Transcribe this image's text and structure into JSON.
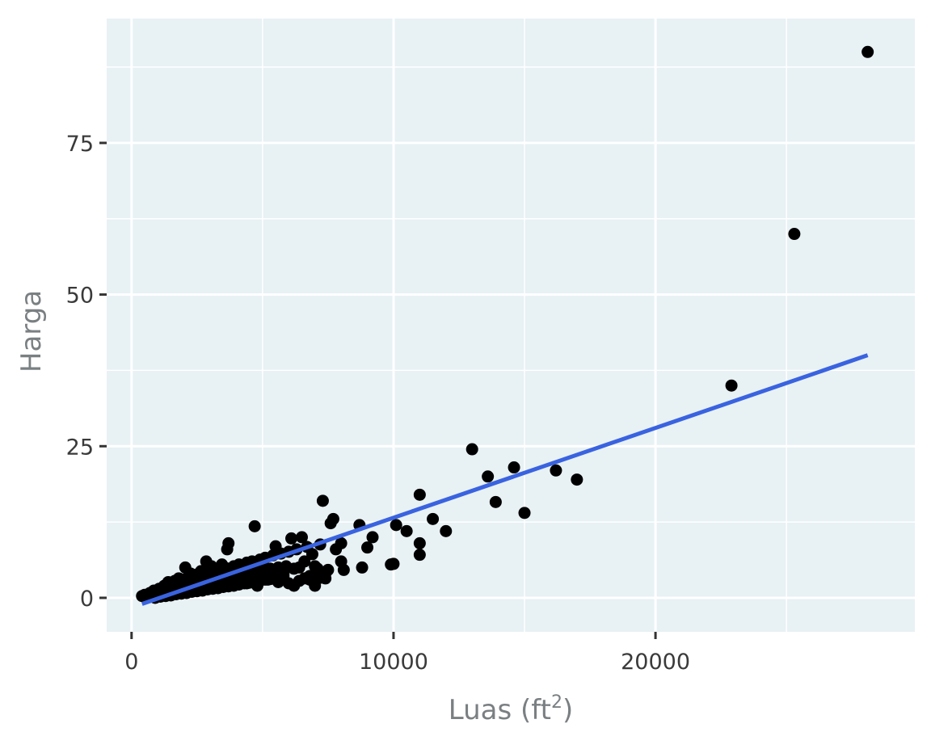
{
  "chart_data": {
    "type": "scatter",
    "title": "",
    "xlabel": "Luas (ft²)",
    "xlabel_base": "Luas (ft",
    "xlabel_sup": "2",
    "xlabel_close": ")",
    "ylabel": "Harga",
    "xlim": [
      -950,
      29900
    ],
    "ylim": [
      -5.6,
      95.5
    ],
    "x_ticks": [
      0,
      10000,
      20000
    ],
    "x_tick_labels": [
      "0",
      "10000",
      "20000"
    ],
    "y_ticks": [
      0,
      25,
      50,
      75
    ],
    "y_tick_labels": [
      "0",
      "25",
      "50",
      "75"
    ],
    "x_minor": [
      5000,
      15000,
      25000
    ],
    "y_minor": [
      12.5,
      37.5,
      62.5,
      87.5
    ],
    "grid": true,
    "legend": "none",
    "colors": {
      "panel_bg": "#e8f1f4",
      "grid": "#ffffff",
      "points": "#000000",
      "fit_line": "#3a63e0",
      "tick_text": "#3a3a3a",
      "axis_title": "#7a7f82"
    },
    "series": [
      {
        "name": "observations",
        "kind": "points",
        "x": [
          400,
          500,
          600,
          700,
          800,
          850,
          900,
          1000,
          1050,
          1100,
          1200,
          1250,
          1300,
          1400,
          1450,
          1500,
          1600,
          1650,
          1700,
          1800,
          1850,
          1900,
          2000,
          2050,
          2100,
          2200,
          2250,
          2300,
          2400,
          2450,
          2500,
          2600,
          2650,
          2700,
          2800,
          2850,
          2900,
          3000,
          3050,
          3100,
          3200,
          3250,
          3300,
          3400,
          3450,
          3500,
          3600,
          3650,
          3700,
          3800,
          3900,
          4000,
          4100,
          4200,
          4300,
          4400,
          4500,
          4600,
          4700,
          4800,
          4900,
          5000,
          5100,
          5200,
          5300,
          5400,
          5500,
          5600,
          5700,
          5800,
          5900,
          6000,
          6100,
          6200,
          6300,
          6400,
          6500,
          6600,
          6700,
          6800,
          6900,
          7000,
          7100,
          7200,
          7300,
          7400,
          7500,
          7600,
          7700,
          7800,
          8000,
          8000,
          8100,
          8700,
          8800,
          9000,
          9200,
          9900,
          10000,
          10100,
          10500,
          11000,
          11000,
          11000,
          11500,
          12000,
          13000,
          13600,
          13900,
          14600,
          15000,
          16200,
          17000,
          22900,
          25300,
          28100,
          900,
          1100,
          1300,
          1500,
          1700,
          1900,
          2100,
          2300,
          2500,
          2700,
          2900,
          3100,
          3300,
          3500,
          3700,
          3900,
          4100,
          4300,
          4500,
          4700,
          4900,
          5100,
          5300,
          5500,
          1400,
          1800,
          2200,
          2600,
          3000,
          3400,
          3800,
          4200,
          4600,
          5000,
          5400,
          5800,
          6200,
          6600,
          7000,
          7400,
          2400,
          2900,
          3600,
          4400,
          4800,
          5600,
          6000,
          6400,
          6800,
          7200
        ],
        "y": [
          0.3,
          0.5,
          0.2,
          0.8,
          0.6,
          1.2,
          0.4,
          0.9,
          1.5,
          0.7,
          1.3,
          2.0,
          0.8,
          1.6,
          2.4,
          1.0,
          1.9,
          2.8,
          1.2,
          2.2,
          3.1,
          1.4,
          2.5,
          5.0,
          1.6,
          2.8,
          4.0,
          1.8,
          3.1,
          3.8,
          2.0,
          3.4,
          4.4,
          2.2,
          3.7,
          6.0,
          2.4,
          4.0,
          5.2,
          2.6,
          4.3,
          3.0,
          2.8,
          4.6,
          5.5,
          3.0,
          4.9,
          8.0,
          9.0,
          3.4,
          5.2,
          3.6,
          5.5,
          4.0,
          3.8,
          5.8,
          4.2,
          6.0,
          11.8,
          4.4,
          6.3,
          4.6,
          6.6,
          3.0,
          4.8,
          7.0,
          8.5,
          5.0,
          7.3,
          4.0,
          5.2,
          7.6,
          9.8,
          2.0,
          8.0,
          5.0,
          10.0,
          6.0,
          8.4,
          3.6,
          7.2,
          2.0,
          4.8,
          8.8,
          16.0,
          3.2,
          4.6,
          12.3,
          13.0,
          8.0,
          9.0,
          6.0,
          4.6,
          12.0,
          5.0,
          8.3,
          10.0,
          5.5,
          5.6,
          12.0,
          11.0,
          17.0,
          9.0,
          7.1,
          13.0,
          11.0,
          24.5,
          20.0,
          15.8,
          21.5,
          14.0,
          21.0,
          19.5,
          35.0,
          60.0,
          90.0,
          0.0,
          0.2,
          0.3,
          0.4,
          0.6,
          0.7,
          0.8,
          1.0,
          1.1,
          1.2,
          1.4,
          1.5,
          1.6,
          1.8,
          1.9,
          2.0,
          2.2,
          2.4,
          2.5,
          2.6,
          2.8,
          3.0,
          3.1,
          3.2,
          2.6,
          3.2,
          3.8,
          3.0,
          3.5,
          4.2,
          4.6,
          5.0,
          4.0,
          5.5,
          4.4,
          3.6,
          4.8,
          3.2,
          5.2,
          4.0,
          1.8,
          2.0,
          2.2,
          2.4,
          2.0,
          2.6,
          2.4,
          2.8,
          3.0,
          3.3
        ]
      },
      {
        "name": "linear fit",
        "kind": "line",
        "x": [
          400,
          28100
        ],
        "y": [
          -1.0,
          40.0
        ]
      }
    ]
  }
}
